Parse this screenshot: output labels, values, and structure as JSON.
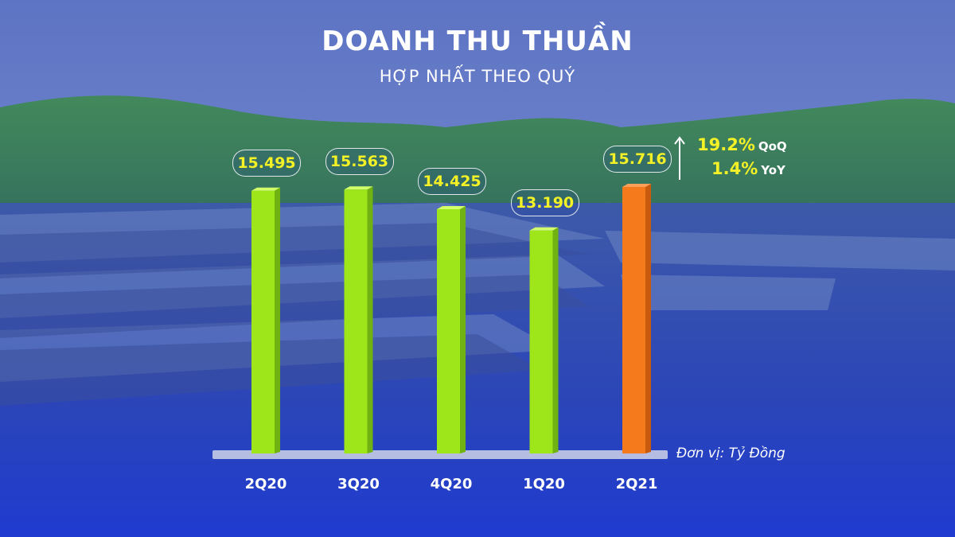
{
  "title": "DOANH THU THUẦN",
  "subtitle": "HỢP NHẤT THEO QUÝ",
  "unit_label": "Đơn vị: Tỷ Đồng",
  "growth": {
    "qoq_value": "19.2%",
    "qoq_label": "QoQ",
    "yoy_value": "1.4%",
    "yoy_label": "YoY"
  },
  "colors": {
    "green_bar": "#9ee51a",
    "orange_bar": "#f47a1c",
    "value_text": "#f4f126",
    "background": "#2c47b8"
  },
  "chart_data": {
    "type": "bar",
    "title": "DOANH THU THUẦN",
    "subtitle": "HỢP NHẤT THEO QUÝ",
    "categories": [
      "2Q20",
      "3Q20",
      "4Q20",
      "1Q20",
      "2Q21"
    ],
    "values": [
      15495,
      15563,
      14425,
      13190,
      15716
    ],
    "value_labels": [
      "15.495",
      "15.563",
      "14.425",
      "13.190",
      "15.716"
    ],
    "highlight_index": 4,
    "ylabel": "",
    "xlabel": "",
    "grid": false
  }
}
